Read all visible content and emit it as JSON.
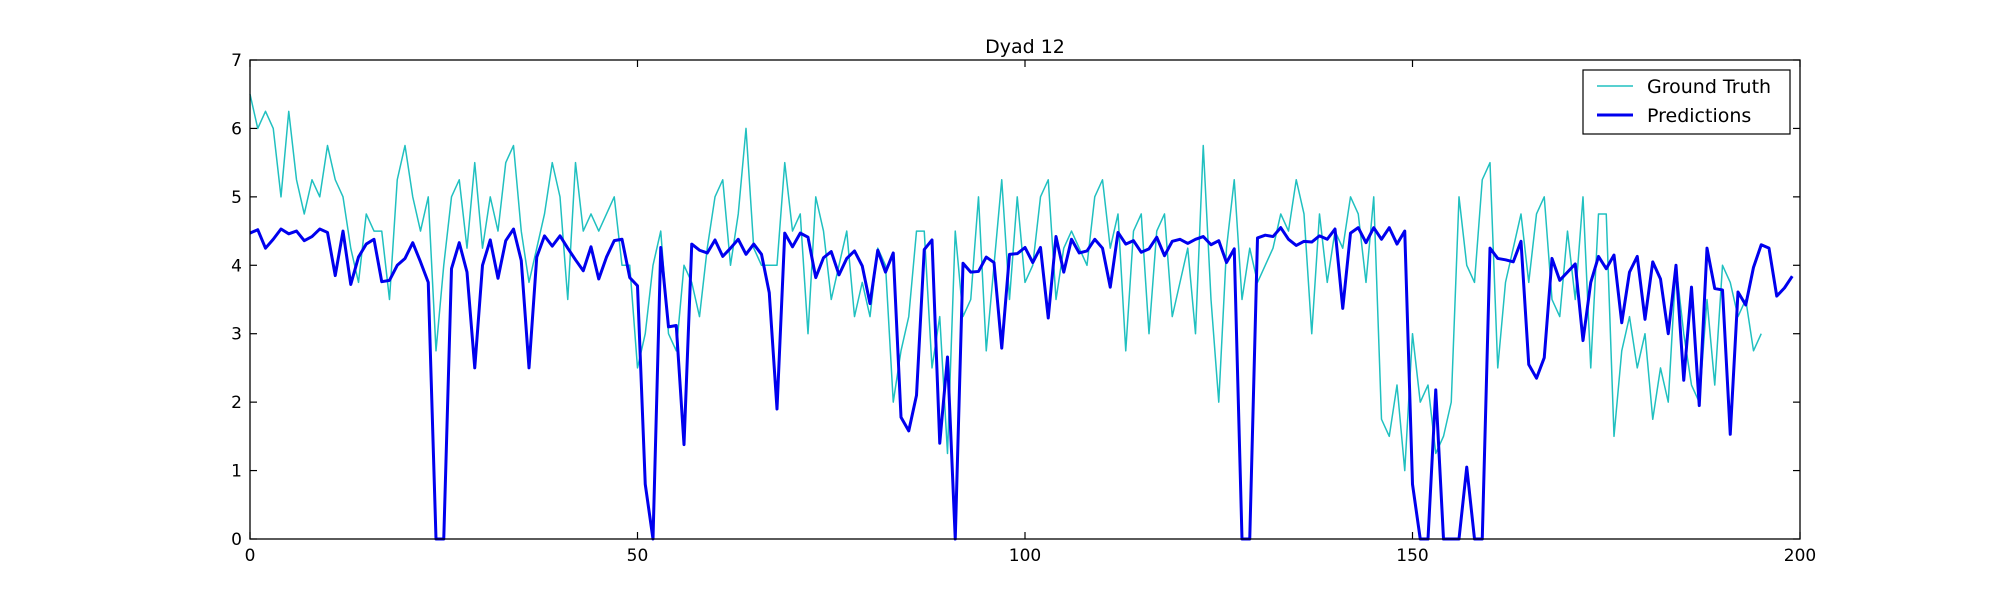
{
  "chart_data": {
    "type": "line",
    "title": "Dyad 12",
    "xlabel": "",
    "ylabel": "",
    "xlim": [
      0,
      200
    ],
    "ylim": [
      0,
      7
    ],
    "x_ticks": [
      0,
      50,
      100,
      150,
      200
    ],
    "y_ticks": [
      0,
      1,
      2,
      3,
      4,
      5,
      6,
      7
    ],
    "grid": false,
    "legend_position": "top-right",
    "series": [
      {
        "name": "Ground Truth",
        "color": "#20c0c0",
        "x_start": 0,
        "x_step": 1,
        "values": [
          6.5,
          6.0,
          6.25,
          6.0,
          5.0,
          6.25,
          5.25,
          4.75,
          5.25,
          5.0,
          5.75,
          5.25,
          5.0,
          4.25,
          3.75,
          4.75,
          4.5,
          4.5,
          3.5,
          5.25,
          5.75,
          5.0,
          4.5,
          5.0,
          2.75,
          4.0,
          5.0,
          5.25,
          4.25,
          5.5,
          4.25,
          5.0,
          4.5,
          5.5,
          5.75,
          4.5,
          3.75,
          4.25,
          4.75,
          5.5,
          5.0,
          3.5,
          5.5,
          4.5,
          4.75,
          4.5,
          4.75,
          5.0,
          4.0,
          4.0,
          2.5,
          3.0,
          4.0,
          4.5,
          3.0,
          2.75,
          4.0,
          3.75,
          3.25,
          4.25,
          5.0,
          5.25,
          4.0,
          4.75,
          6.0,
          4.25,
          4.0,
          4.0,
          4.0,
          5.5,
          4.5,
          4.75,
          3.0,
          5.0,
          4.5,
          3.5,
          4.0,
          4.5,
          3.25,
          3.75,
          3.25,
          4.25,
          4.0,
          2.0,
          2.75,
          3.25,
          4.5,
          4.5,
          2.5,
          3.25,
          1.25,
          4.5,
          3.25,
          3.5,
          5.0,
          2.75,
          4.0,
          5.25,
          3.5,
          5.0,
          3.75,
          4.0,
          5.0,
          5.25,
          3.5,
          4.25,
          4.5,
          4.25,
          4.0,
          5.0,
          5.25,
          4.25,
          4.75,
          2.75,
          4.5,
          4.75,
          3.0,
          4.5,
          4.75,
          3.25,
          3.75,
          4.25,
          3.0,
          5.75,
          3.5,
          2.0,
          4.25,
          5.25,
          3.5,
          4.25,
          3.75,
          4.0,
          4.25,
          4.75,
          4.5,
          5.25,
          4.75,
          3.0,
          4.75,
          3.75,
          4.5,
          4.25,
          5.0,
          4.75,
          3.75,
          5.0,
          1.75,
          1.5,
          2.25,
          1.0,
          3.0,
          2.0,
          2.25,
          1.25,
          1.5,
          2.0,
          5.0,
          4.0,
          3.75,
          5.25,
          5.5,
          2.5,
          3.75,
          4.25,
          4.75,
          3.75,
          4.75,
          5.0,
          3.5,
          3.25,
          4.5,
          3.5,
          5.0,
          2.5,
          4.75,
          4.75,
          1.5,
          2.75,
          3.25,
          2.5,
          3.0,
          1.75,
          2.5,
          2.0,
          4.0,
          3.0,
          2.25,
          2.0,
          3.5,
          2.25,
          4.0,
          3.75,
          3.25,
          3.5,
          2.75,
          3.0
        ]
      },
      {
        "name": "Predictions",
        "color": "#0000ee",
        "x_start": 0,
        "x_step": 1,
        "values": [
          4.47,
          4.52,
          4.25,
          4.38,
          4.53,
          4.46,
          4.5,
          4.36,
          4.42,
          4.53,
          4.48,
          3.85,
          4.5,
          3.72,
          4.12,
          4.31,
          4.38,
          3.76,
          3.78,
          4.0,
          4.1,
          4.33,
          4.05,
          3.75,
          0.0,
          0.0,
          3.95,
          4.33,
          3.9,
          2.5,
          4.0,
          4.37,
          3.81,
          4.36,
          4.53,
          4.07,
          2.5,
          4.12,
          4.43,
          4.28,
          4.43,
          4.25,
          4.08,
          3.92,
          4.27,
          3.8,
          4.12,
          4.36,
          4.38,
          3.82,
          3.7,
          0.8,
          0.0,
          4.26,
          3.1,
          3.12,
          1.38,
          4.31,
          4.22,
          4.18,
          4.37,
          4.13,
          4.25,
          4.38,
          4.16,
          4.31,
          4.16,
          3.6,
          1.9,
          4.47,
          4.27,
          4.47,
          4.41,
          3.82,
          4.11,
          4.2,
          3.86,
          4.1,
          4.21,
          3.99,
          3.44,
          4.22,
          3.9,
          4.18,
          1.78,
          1.58,
          2.1,
          4.23,
          4.37,
          1.4,
          2.66,
          0.0,
          4.03,
          3.9,
          3.91,
          4.12,
          4.04,
          2.79,
          4.16,
          4.17,
          4.26,
          4.04,
          4.26,
          3.23,
          4.42,
          3.9,
          4.38,
          4.18,
          4.21,
          4.38,
          4.25,
          3.68,
          4.48,
          4.31,
          4.36,
          4.19,
          4.24,
          4.41,
          4.14,
          4.35,
          4.38,
          4.32,
          4.38,
          4.42,
          4.3,
          4.36,
          4.04,
          4.24,
          0.0,
          0.0,
          4.4,
          4.44,
          4.42,
          4.55,
          4.38,
          4.29,
          4.35,
          4.34,
          4.43,
          4.38,
          4.53,
          3.37,
          4.47,
          4.55,
          4.33,
          4.55,
          4.38,
          4.55,
          4.31,
          4.5,
          0.8,
          0.0,
          0.0,
          2.18,
          0.0,
          0.0,
          0.0,
          1.05,
          0.0,
          0.0,
          4.25,
          4.1,
          4.08,
          4.05,
          4.35,
          2.55,
          2.35,
          2.65,
          4.1,
          3.78,
          3.9,
          4.02,
          2.9,
          3.75,
          4.13,
          3.95,
          4.15,
          3.16,
          3.9,
          4.13,
          3.21,
          4.05,
          3.8,
          3.0,
          4.0,
          2.32,
          3.68,
          1.95,
          4.25,
          3.66,
          3.64,
          1.53,
          3.61,
          3.42,
          3.97,
          4.3,
          4.25,
          3.55,
          3.67,
          3.84
        ]
      }
    ]
  }
}
